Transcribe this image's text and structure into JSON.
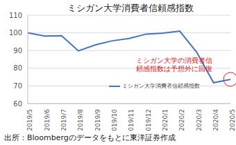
{
  "chart_data": {
    "type": "line",
    "title": "ミシガン大学消費者信頼感指数",
    "categories": [
      "2019/5",
      "2019/6",
      "2019/7",
      "2019/8",
      "2019/9",
      "2019/10",
      "2019/11",
      "2019/12",
      "2020/1",
      "2020/2",
      "2020/3",
      "2020/4",
      "2020/5"
    ],
    "series": [
      {
        "name": "ミシガン大学消費者信頼感指数",
        "color": "#4472c4",
        "values": [
          100,
          98.2,
          98.4,
          89.8,
          93.2,
          95.5,
          96.8,
          99.3,
          99.8,
          101,
          89.1,
          71.8,
          73.7
        ]
      }
    ],
    "ylim": [
      60,
      110
    ],
    "yticks": [
      60,
      70,
      80,
      90,
      100,
      110
    ],
    "grid": true,
    "legend": "lower right",
    "annotation": [
      "ミシガン大学の消費者信",
      "頼感指数は予想外に回復"
    ],
    "source": "出所：Bloombergのデータをもとに東洋証券作成"
  }
}
